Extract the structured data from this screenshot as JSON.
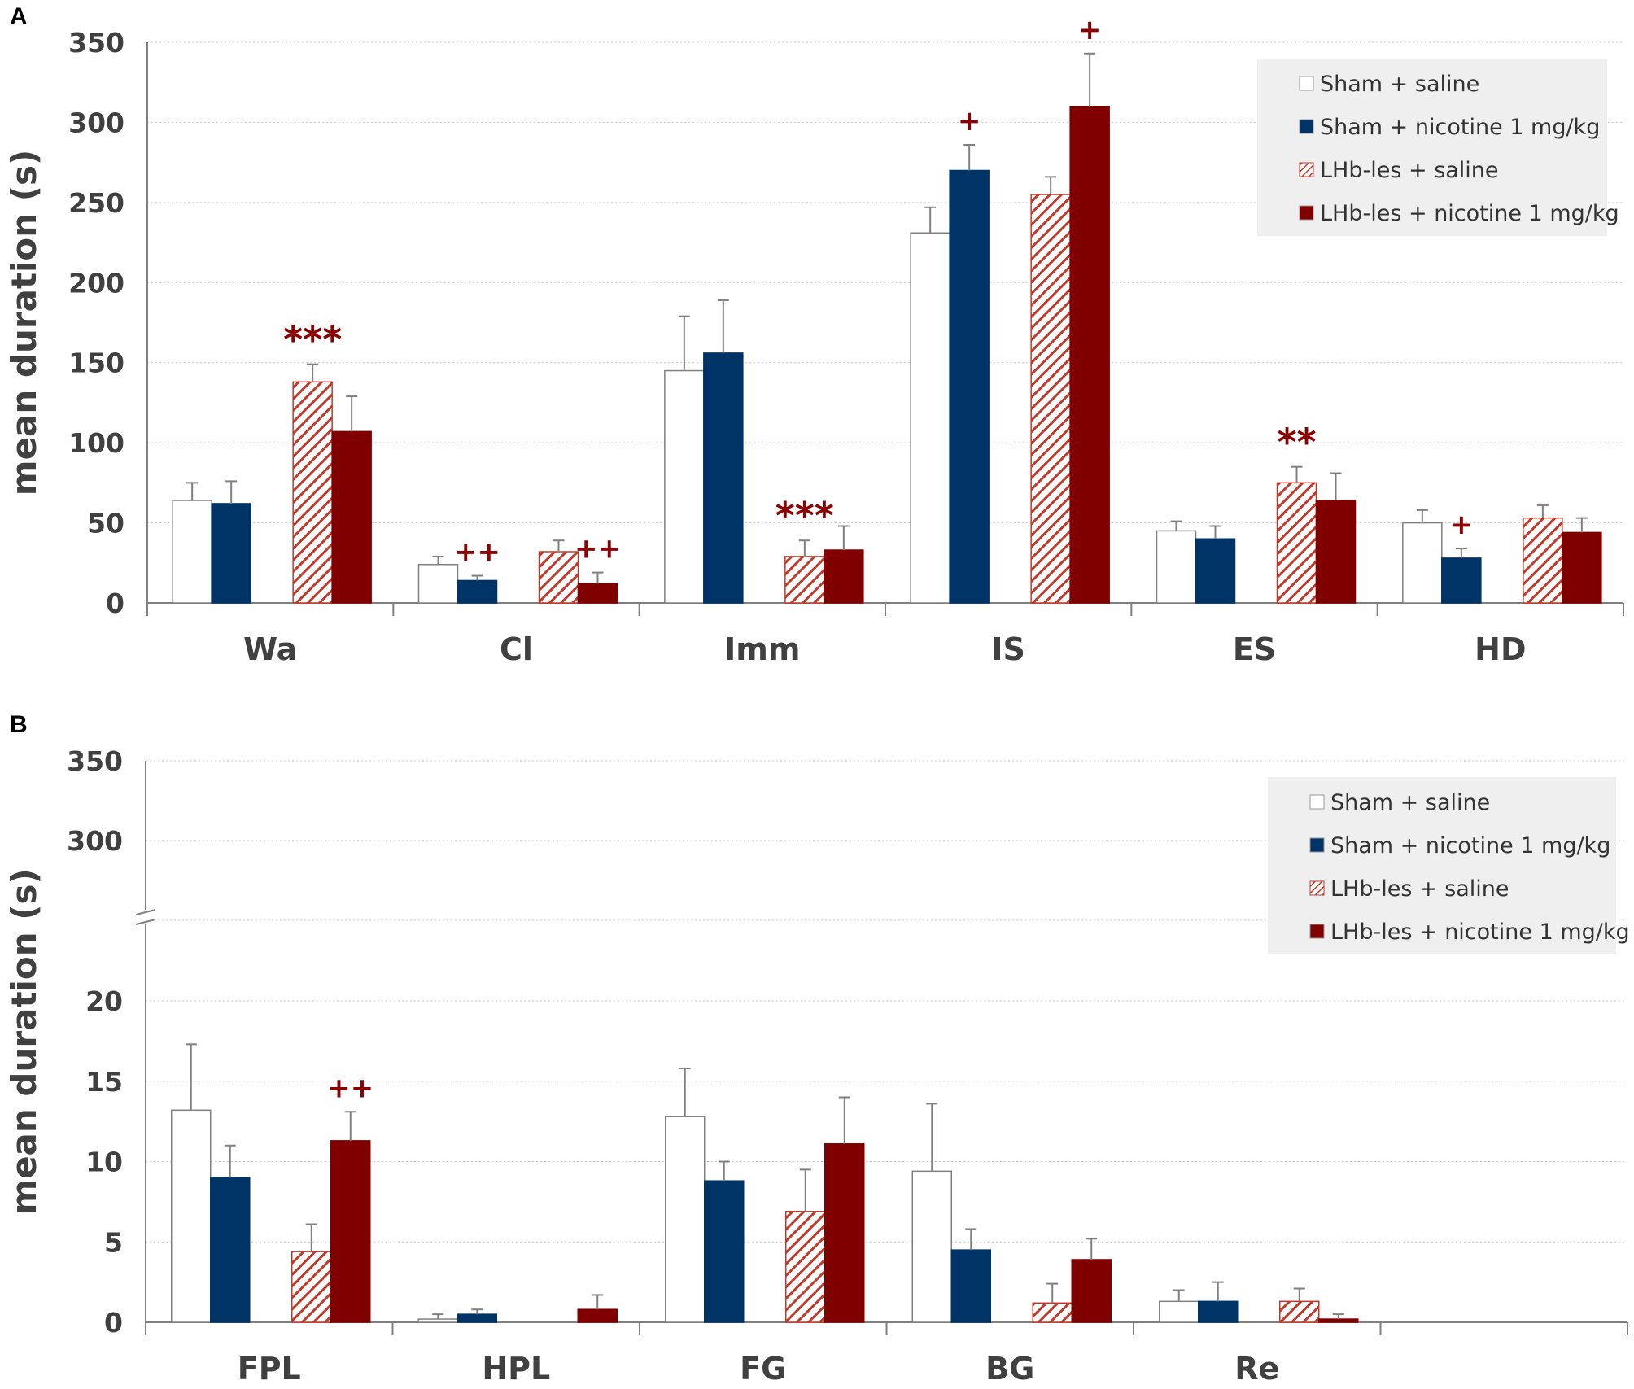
{
  "chart_data": [
    {
      "panel": "A",
      "type": "bar",
      "ylabel": "mean duration (s)",
      "ylim": [
        0,
        350
      ],
      "yticks": [
        0,
        50,
        100,
        150,
        200,
        250,
        300,
        350
      ],
      "categories": [
        "Wa",
        "Cl",
        "Imm",
        "IS",
        "ES",
        "HD"
      ],
      "series": [
        {
          "name": "Sham + saline",
          "color": "#ffffff",
          "pattern": "none",
          "values": [
            64,
            24,
            145,
            231,
            45,
            50
          ],
          "errors": [
            11,
            5,
            34,
            16,
            6,
            8
          ]
        },
        {
          "name": "Sham + nicotine 1 mg/kg",
          "color": "#003366",
          "pattern": "none",
          "values": [
            62,
            14,
            156,
            270,
            40,
            28
          ],
          "errors": [
            14,
            3,
            33,
            16,
            8,
            6
          ]
        },
        {
          "name": "LHb-les + saline",
          "color": "#c0392b",
          "pattern": "hatch",
          "values": [
            138,
            32,
            29,
            255,
            75,
            53
          ],
          "errors": [
            11,
            7,
            10,
            11,
            10,
            8
          ]
        },
        {
          "name": "LHb-les + nicotine 1 mg/kg",
          "color": "#800000",
          "pattern": "none",
          "values": [
            107,
            12,
            33,
            310,
            64,
            44
          ],
          "errors": [
            22,
            7,
            15,
            33,
            17,
            9
          ]
        }
      ],
      "annotations": [
        {
          "category": "Wa",
          "series": 2,
          "text": "***"
        },
        {
          "category": "Cl",
          "series": 1,
          "text": "++"
        },
        {
          "category": "Cl",
          "series": 3,
          "text": "++"
        },
        {
          "category": "Imm",
          "series": 2,
          "text": "***"
        },
        {
          "category": "IS",
          "series": 1,
          "text": "+"
        },
        {
          "category": "IS",
          "series": 3,
          "text": "+"
        },
        {
          "category": "ES",
          "series": 2,
          "text": "**"
        },
        {
          "category": "HD",
          "series": 1,
          "text": "+"
        }
      ],
      "legend": "top-right",
      "grid": true
    },
    {
      "panel": "B",
      "type": "bar",
      "ylabel": "mean duration (s)",
      "ylim": [
        0,
        350
      ],
      "axis_break": [
        25,
        250
      ],
      "yticks": [
        0,
        5,
        10,
        15,
        20,
        300,
        350
      ],
      "categories": [
        "FPL",
        "HPL",
        "FG",
        "BG",
        "Re"
      ],
      "series": [
        {
          "name": "Sham + saline",
          "color": "#ffffff",
          "pattern": "none",
          "values": [
            13.2,
            0.2,
            12.8,
            9.4,
            1.3
          ],
          "errors": [
            4.1,
            0.3,
            3.0,
            4.2,
            0.7
          ]
        },
        {
          "name": "Sham + nicotine 1 mg/kg",
          "color": "#003366",
          "pattern": "none",
          "values": [
            9.0,
            0.5,
            8.8,
            4.5,
            1.3
          ],
          "errors": [
            2.0,
            0.3,
            1.2,
            1.3,
            1.2
          ]
        },
        {
          "name": "LHb-les + saline",
          "color": "#c0392b",
          "pattern": "hatch",
          "values": [
            4.4,
            0.0,
            6.9,
            1.2,
            1.3
          ],
          "errors": [
            1.7,
            0.0,
            2.6,
            1.2,
            0.8
          ]
        },
        {
          "name": "LHb-les + nicotine 1 mg/kg",
          "color": "#800000",
          "pattern": "none",
          "values": [
            11.3,
            0.8,
            11.1,
            3.9,
            0.2
          ],
          "errors": [
            1.8,
            0.9,
            2.9,
            1.3,
            0.3
          ]
        }
      ],
      "annotations": [
        {
          "category": "FPL",
          "series": 3,
          "text": "++"
        }
      ],
      "legend": "top-right",
      "grid": true
    }
  ]
}
